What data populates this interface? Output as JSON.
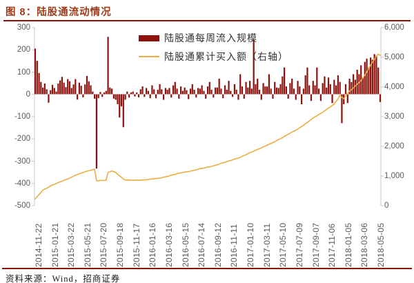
{
  "title": "图 8：陆股通流动情况",
  "source": "资料来源：Wind，招商证券",
  "colors": {
    "bar": "#8C120D",
    "line": "#ECAC41",
    "rule": "#8B1209",
    "title_text": "#9E3B1B",
    "axis_text": "#595959",
    "axis_line": "#C9C9C9"
  },
  "chart_data": {
    "type": "bar+line",
    "title": "陆股通流动情况",
    "grid": false,
    "legend_position": "top-center",
    "left_axis": {
      "min": -500,
      "max": 300,
      "step": 100,
      "ticks": [
        "300",
        "200",
        "100",
        "0",
        "-100",
        "-200",
        "-300",
        "-400",
        "-500"
      ]
    },
    "right_axis": {
      "min": 0,
      "max": 6000,
      "step": 1000,
      "ticks": [
        "6,000",
        "5,000",
        "4,000",
        "3,000",
        "2,000",
        "1,000",
        "0"
      ]
    },
    "x_tick_labels": [
      "2014-11-22",
      "2015-01-21",
      "2015-03-22",
      "2015-05-21",
      "2015-07-20",
      "2015-09-18",
      "2015-11-17",
      "2016-01-16",
      "2016-03-16",
      "2016-05-15",
      "2016-07-14",
      "2016-09-12",
      "2016-11-11",
      "2017-01-10",
      "2017-03-11",
      "2017-05-10",
      "2017-07-09",
      "2017-09-07",
      "2017-11-06",
      "2018-01-05",
      "2018-03-06",
      "2018-05-05"
    ],
    "series": [
      {
        "name": "陆股通每周流入规模",
        "type": "bar",
        "axis": "left",
        "values": [
          205,
          150,
          95,
          55,
          30,
          48,
          22,
          -38,
          18,
          42,
          28,
          12,
          48,
          62,
          78,
          52,
          32,
          68,
          58,
          28,
          44,
          68,
          -24,
          52,
          38,
          -14,
          44,
          82,
          58,
          40,
          12,
          -20,
          -334,
          -18,
          10,
          -12,
          8,
          15,
          258,
          30,
          25,
          -20,
          -25,
          -45,
          -105,
          -55,
          -148,
          -25,
          12,
          -15,
          8,
          12,
          -10,
          8,
          -14,
          22,
          35,
          -12,
          28,
          15,
          -18,
          40,
          22,
          -18,
          20,
          45,
          22,
          -25,
          28,
          20,
          28,
          -15,
          40,
          55,
          25,
          -20,
          35,
          15,
          30,
          18,
          -22,
          25,
          45,
          20,
          -15,
          28,
          25,
          40,
          15,
          -20,
          35,
          55,
          20,
          -15,
          30,
          30,
          70,
          25,
          -18,
          40,
          20,
          60,
          15,
          -12,
          45,
          20,
          -25,
          90,
          35,
          -20,
          55,
          30,
          60,
          25,
          245,
          45,
          70,
          20,
          -25,
          50,
          35,
          35,
          90,
          25,
          -20,
          55,
          30,
          28,
          45,
          80,
          120,
          35,
          -20,
          50,
          70,
          25,
          -25,
          60,
          35,
          -45,
          25,
          85,
          120,
          40,
          -30,
          60,
          40,
          120,
          25,
          -30,
          50,
          80,
          30,
          75,
          45,
          -40,
          65,
          40,
          85,
          55,
          -130,
          -45,
          45,
          -40,
          70,
          55,
          90,
          65,
          110,
          90,
          130,
          75,
          145,
          160,
          120,
          165,
          155,
          180,
          170,
          120,
          -35
        ]
      },
      {
        "name": "陆股通累计买入额（右轴）",
        "type": "line",
        "axis": "right",
        "anchors": [
          [
            0,
            230
          ],
          [
            4,
            520
          ],
          [
            9,
            700
          ],
          [
            13,
            800
          ],
          [
            17,
            900
          ],
          [
            21,
            1030
          ],
          [
            26,
            1140
          ],
          [
            31,
            1230
          ],
          [
            32,
            845
          ],
          [
            37,
            855
          ],
          [
            38,
            1115
          ],
          [
            40,
            1170
          ],
          [
            42,
            1120
          ],
          [
            44,
            1010
          ],
          [
            46,
            900
          ],
          [
            47,
            870
          ],
          [
            50,
            855
          ],
          [
            55,
            865
          ],
          [
            60,
            890
          ],
          [
            64,
            920
          ],
          [
            68,
            975
          ],
          [
            72,
            1040
          ],
          [
            77,
            1120
          ],
          [
            82,
            1180
          ],
          [
            86,
            1240
          ],
          [
            90,
            1300
          ],
          [
            94,
            1360
          ],
          [
            98,
            1440
          ],
          [
            103,
            1550
          ],
          [
            107,
            1630
          ],
          [
            111,
            1750
          ],
          [
            115,
            1870
          ],
          [
            120,
            2005
          ],
          [
            124,
            2125
          ],
          [
            128,
            2265
          ],
          [
            132,
            2405
          ],
          [
            137,
            2580
          ],
          [
            141,
            2760
          ],
          [
            145,
            2950
          ],
          [
            149,
            3110
          ],
          [
            153,
            3290
          ],
          [
            156,
            3420
          ],
          [
            158,
            3600
          ],
          [
            159,
            3720
          ],
          [
            160,
            3640
          ],
          [
            161,
            3610
          ],
          [
            162,
            3700
          ],
          [
            164,
            3860
          ],
          [
            166,
            3970
          ],
          [
            168,
            4090
          ],
          [
            170,
            4210
          ],
          [
            172,
            4400
          ],
          [
            174,
            4630
          ],
          [
            176,
            4840
          ],
          [
            178,
            5040
          ],
          [
            179,
            5110
          ],
          [
            180,
            5060
          ]
        ]
      }
    ]
  }
}
